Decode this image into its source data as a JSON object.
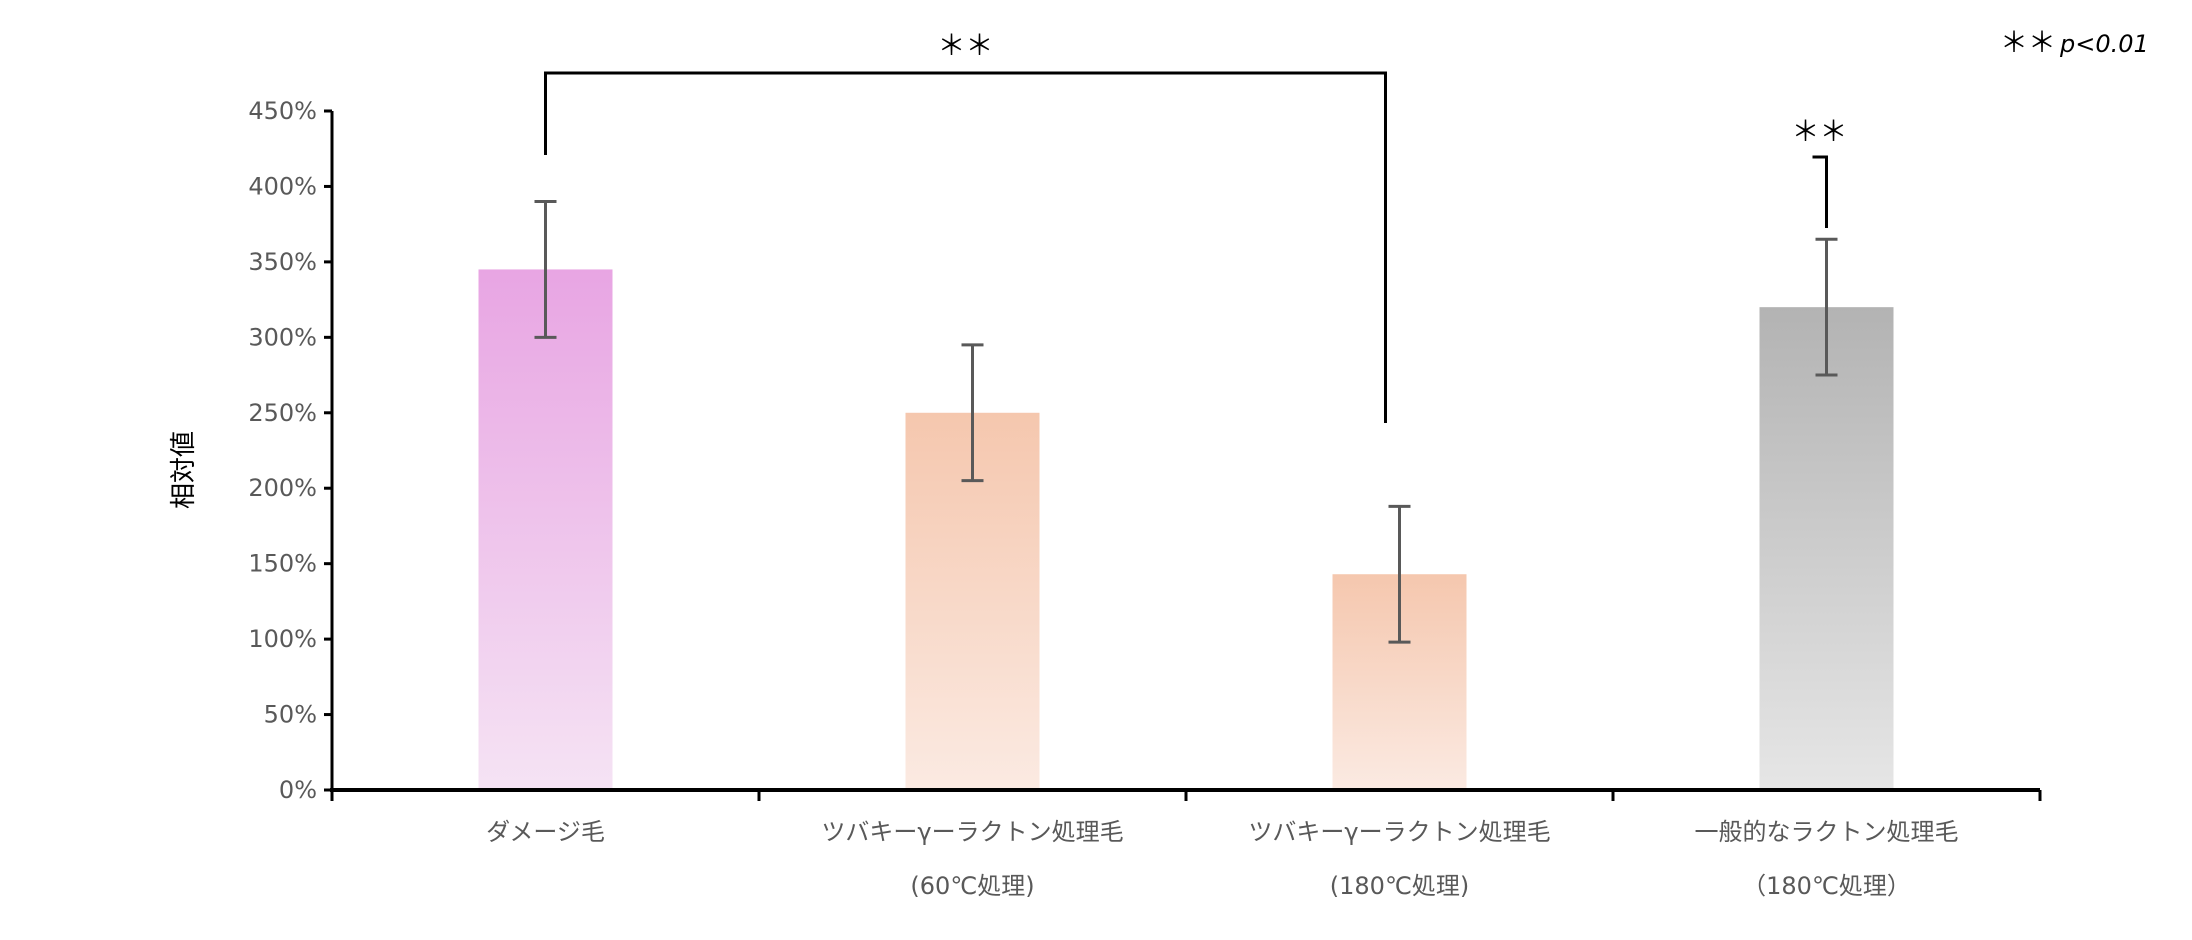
{
  "chart_data": {
    "type": "bar",
    "title": "",
    "xlabel": "",
    "ylabel": "相対値",
    "ylim": [
      0,
      4.5
    ],
    "yticks": [
      "0%",
      "50%",
      "100%",
      "150%",
      "200%",
      "250%",
      "300%",
      "350%",
      "400%",
      "450%"
    ],
    "categories": [
      {
        "line1": "ダメージ毛",
        "line2": ""
      },
      {
        "line1": "ツバキーγーラクトン処理毛",
        "line2": "(60℃処理)"
      },
      {
        "line1": "ツバキーγーラクトン処理毛",
        "line2": "(180℃処理)"
      },
      {
        "line1": "一般的なラクトン処理毛",
        "line2": "（180℃処理）"
      }
    ],
    "values": [
      3.45,
      2.5,
      1.43,
      3.2
    ],
    "errors": [
      0.45,
      0.45,
      0.45,
      0.45
    ],
    "colors": [
      [
        "#e8a5e3",
        "#f5e3f4"
      ],
      [
        "#f5c7ae",
        "#fbeae2"
      ],
      [
        "#f5c7ae",
        "#fbeae2"
      ],
      [
        "#b3b3b3",
        "#e6e6e6"
      ]
    ],
    "grid": false,
    "significance": [
      {
        "from": 0,
        "to": 2,
        "label": "＊＊"
      },
      {
        "from": 2,
        "to": 3,
        "label": "＊＊"
      }
    ],
    "legend": {
      "mark": "＊＊",
      "text": "p<0.01",
      "placement": "top-right"
    }
  }
}
